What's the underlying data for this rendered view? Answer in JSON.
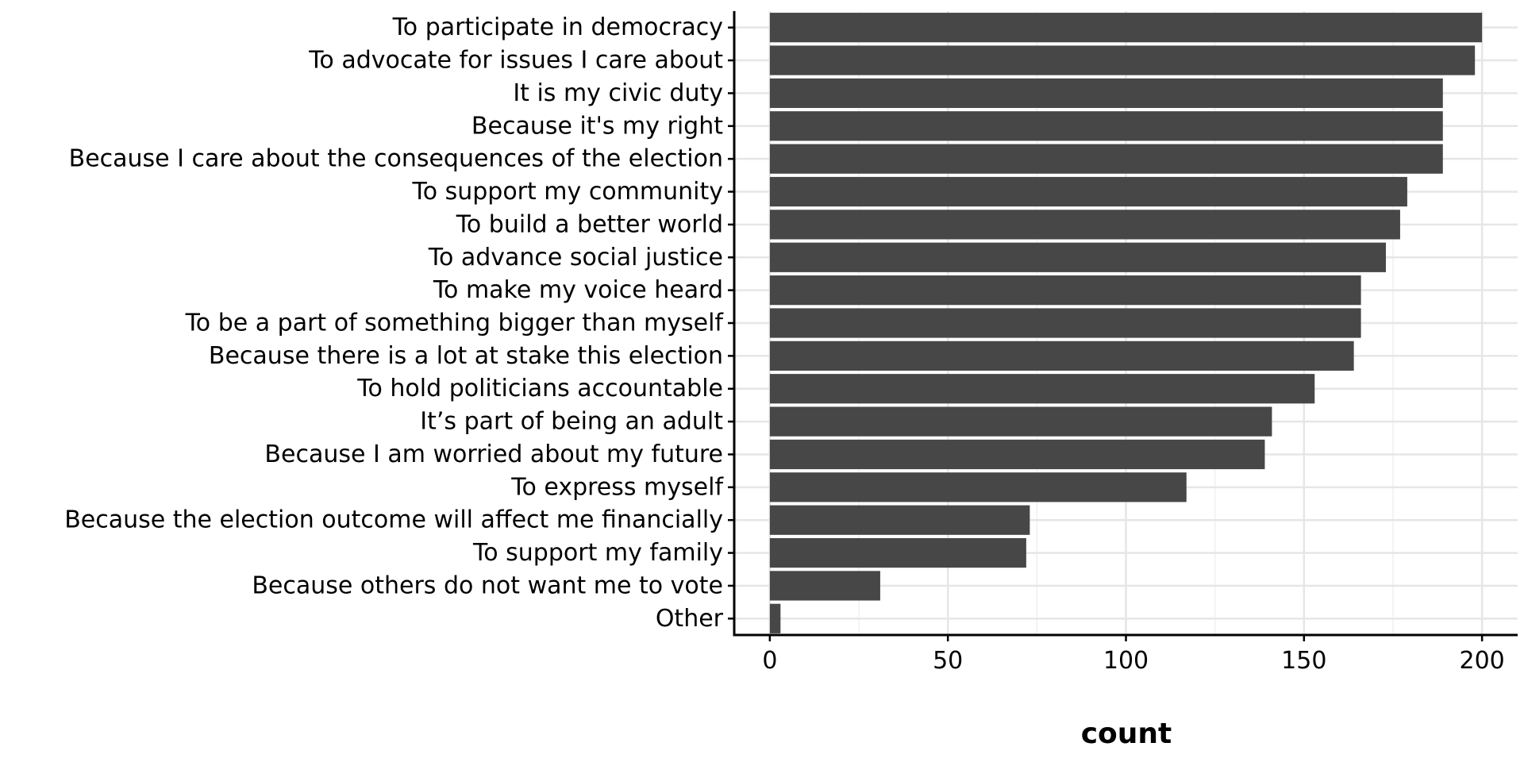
{
  "chart_data": {
    "type": "bar",
    "orientation": "horizontal",
    "categories": [
      "To participate in democracy",
      "To advocate for issues I care about",
      "It is my civic duty",
      "Because it's my right",
      "Because I care about the consequences of the election",
      "To support my community",
      "To build a better world",
      "To advance social justice",
      "To make my voice heard",
      "To be a part of something bigger than myself",
      "Because there is a lot at stake this election",
      "To hold politicians accountable",
      "It’s part of being an adult",
      "Because I am worried about my future",
      "To express myself",
      "Because the election outcome will affect me financially",
      "To support my family",
      "Because others do not want me to vote",
      "Other"
    ],
    "values": [
      200,
      198,
      189,
      189,
      189,
      179,
      177,
      173,
      166,
      166,
      164,
      153,
      141,
      139,
      117,
      73,
      72,
      31,
      3
    ],
    "xlabel": "count",
    "ylabel": "",
    "xlim": [
      -10,
      210
    ],
    "xticks": [
      0,
      50,
      100,
      150,
      200
    ],
    "xtick_labels": [
      "0",
      "50",
      "100",
      "150",
      "200"
    ],
    "grid": true,
    "bar_color": "#474747"
  }
}
